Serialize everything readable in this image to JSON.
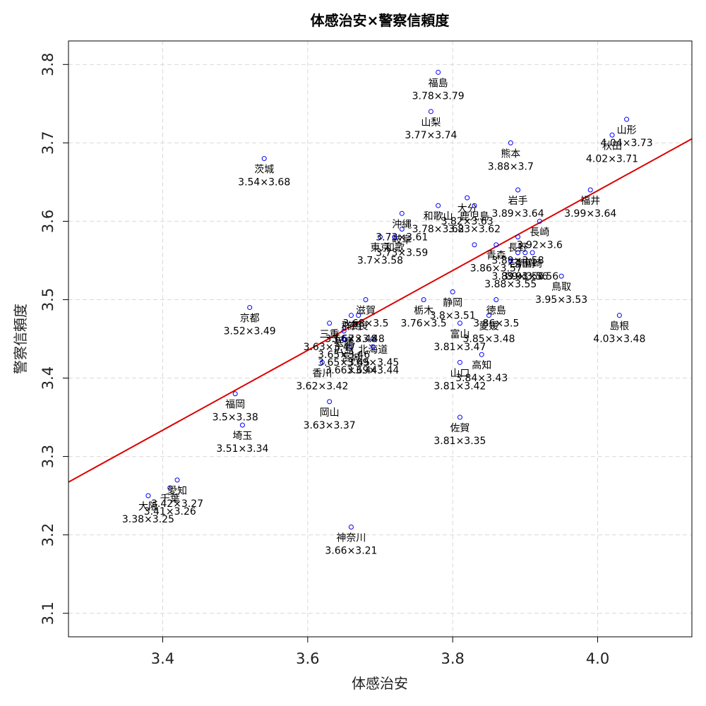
{
  "chart_data": {
    "type": "scatter",
    "title": "体感治安×警察信頼度",
    "xlabel": "体感治安",
    "ylabel": "警察信頼度",
    "xlim": [
      3.27,
      4.13
    ],
    "ylim": [
      3.07,
      3.83
    ],
    "xticks": [
      3.4,
      3.6,
      3.8,
      4.0
    ],
    "yticks": [
      3.1,
      3.2,
      3.3,
      3.4,
      3.5,
      3.6,
      3.7,
      3.8
    ],
    "xtick_labels": [
      "3.4",
      "3.6",
      "3.8",
      "4.0"
    ],
    "ytick_labels": [
      "3.1",
      "3.2",
      "3.3",
      "3.4",
      "3.5",
      "3.6",
      "3.7",
      "3.8"
    ],
    "grid": true,
    "point_color": "#0000ff",
    "fit_line_color": "#dd0000",
    "fit_line": {
      "slope": 0.5091,
      "intercept": 1.6026
    },
    "points": [
      {
        "name": "北海道",
        "x": 3.69,
        "y": 3.45,
        "label": "3.69×3.45"
      },
      {
        "name": "青森",
        "x": 3.86,
        "y": 3.57,
        "label": "3.86×3.57"
      },
      {
        "name": "岩手",
        "x": 3.89,
        "y": 3.64,
        "label": "3.89×3.64"
      },
      {
        "name": "宮城",
        "x": 3.66,
        "y": 3.44,
        "label": "3.66×3.44"
      },
      {
        "name": "秋田",
        "x": 4.02,
        "y": 3.71,
        "label": "4.02×3.71"
      },
      {
        "name": "山形",
        "x": 4.04,
        "y": 3.73,
        "label": "4.04×3.73"
      },
      {
        "name": "福島",
        "x": 3.78,
        "y": 3.79,
        "label": "3.78×3.79"
      },
      {
        "name": "茨城",
        "x": 3.54,
        "y": 3.68,
        "label": "3.54×3.68"
      },
      {
        "name": "栃木",
        "x": 3.76,
        "y": 3.5,
        "label": "3.76×3.5"
      },
      {
        "name": "群馬",
        "x": 3.66,
        "y": 3.48,
        "label": "3.66×3.48"
      },
      {
        "name": "埼玉",
        "x": 3.51,
        "y": 3.34,
        "label": "3.51×3.34"
      },
      {
        "name": "千葉",
        "x": 3.41,
        "y": 3.26,
        "label": "3.41×3.26"
      },
      {
        "name": "東京",
        "x": 3.7,
        "y": 3.58,
        "label": "3.7×3.58"
      },
      {
        "name": "神奈川",
        "x": 3.66,
        "y": 3.21,
        "label": "3.66×3.21"
      },
      {
        "name": "新潟",
        "x": 3.9,
        "y": 3.56,
        "label": "3.9×3.56"
      },
      {
        "name": "富山",
        "x": 3.81,
        "y": 3.47,
        "label": "3.81×3.47"
      },
      {
        "name": "石川",
        "x": 3.89,
        "y": 3.56,
        "label": "3.89×3.56"
      },
      {
        "name": "福井",
        "x": 3.99,
        "y": 3.64,
        "label": "3.99×3.64"
      },
      {
        "name": "山梨",
        "x": 3.77,
        "y": 3.74,
        "label": "3.77×3.74"
      },
      {
        "name": "長野",
        "x": 3.89,
        "y": 3.58,
        "label": "3.89×3.58"
      },
      {
        "name": "岐阜",
        "x": 3.73,
        "y": 3.59,
        "label": "3.73×3.59"
      },
      {
        "name": "静岡",
        "x": 3.8,
        "y": 3.51,
        "label": "3.8×3.51"
      },
      {
        "name": "愛知",
        "x": 3.42,
        "y": 3.27,
        "label": "3.42×3.27"
      },
      {
        "name": "三重",
        "x": 3.63,
        "y": 3.47,
        "label": "3.63×3.47"
      },
      {
        "name": "滋賀",
        "x": 3.68,
        "y": 3.5,
        "label": "3.68×3.5"
      },
      {
        "name": "京都",
        "x": 3.52,
        "y": 3.49,
        "label": "3.52×3.49"
      },
      {
        "name": "大阪",
        "x": 3.38,
        "y": 3.25,
        "label": "3.38×3.25"
      },
      {
        "name": "兵庫",
        "x": 3.65,
        "y": 3.46,
        "label": "3.65×3.46"
      },
      {
        "name": "奈良",
        "x": 3.67,
        "y": 3.48,
        "label": "3.67×3.48"
      },
      {
        "name": "和歌山",
        "x": 3.78,
        "y": 3.62,
        "label": "3.78×3.62"
      },
      {
        "name": "鳥取",
        "x": 3.95,
        "y": 3.53,
        "label": "3.95×3.53"
      },
      {
        "name": "島根",
        "x": 4.03,
        "y": 3.48,
        "label": "4.03×3.48"
      },
      {
        "name": "岡山",
        "x": 3.63,
        "y": 3.37,
        "label": "3.63×3.37"
      },
      {
        "name": "広島",
        "x": 3.65,
        "y": 3.45,
        "label": "3.65×3.45"
      },
      {
        "name": "山口",
        "x": 3.81,
        "y": 3.42,
        "label": "3.81×3.42"
      },
      {
        "name": "徳島",
        "x": 3.86,
        "y": 3.5,
        "label": "3.86×3.5"
      },
      {
        "name": "香川",
        "x": 3.62,
        "y": 3.42,
        "label": "3.62×3.42"
      },
      {
        "name": "愛媛",
        "x": 3.85,
        "y": 3.48,
        "label": "3.85×3.48"
      },
      {
        "name": "高知",
        "x": 3.84,
        "y": 3.43,
        "label": "3.84×3.43"
      },
      {
        "name": "福岡",
        "x": 3.5,
        "y": 3.38,
        "label": "3.5×3.38"
      },
      {
        "name": "佐賀",
        "x": 3.81,
        "y": 3.35,
        "label": "3.81×3.35"
      },
      {
        "name": "長崎",
        "x": 3.92,
        "y": 3.6,
        "label": "3.92×3.6"
      },
      {
        "name": "熊本",
        "x": 3.88,
        "y": 3.7,
        "label": "3.88×3.7"
      },
      {
        "name": "大分",
        "x": 3.82,
        "y": 3.63,
        "label": "3.82×3.63"
      },
      {
        "name": "宮崎",
        "x": 3.91,
        "y": 3.56,
        "label": "3.91×3.56"
      },
      {
        "name": "鹿児島",
        "x": 3.83,
        "y": 3.62,
        "label": "3.83×3.62"
      },
      {
        "name": "沖縄",
        "x": 3.73,
        "y": 3.61,
        "label": "3.73×3.61"
      },
      {
        "name": "和歌",
        "x": 3.72,
        "y": 3.58,
        "label": ""
      },
      {
        "name": "",
        "x": 3.88,
        "y": 3.55,
        "label": "3.88×3.55"
      },
      {
        "name": "",
        "x": 3.69,
        "y": 3.44,
        "label": "3.69×3.44"
      },
      {
        "name": "",
        "x": 3.83,
        "y": 3.57,
        "label": ""
      }
    ]
  }
}
